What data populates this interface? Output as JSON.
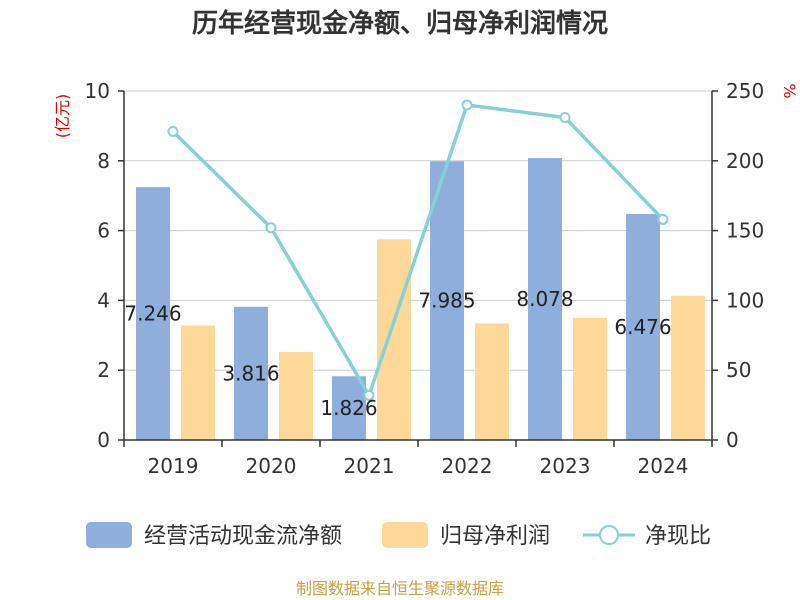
{
  "title": "历年经营现金净额、归母净利润情况",
  "source": "制图数据来自恒生聚源数据库",
  "colors": {
    "cash_flow": "#8eaedb",
    "net_profit": "#fed898",
    "ratio": "#86d1d6",
    "unit": "#e00000",
    "source": "#c8a040",
    "axis": "#333333",
    "grid": "#cccccc"
  },
  "chart_data": {
    "type": "bar",
    "title": "历年经营现金净额、归母净利润情况",
    "categories": [
      "2019",
      "2020",
      "2021",
      "2022",
      "2023",
      "2024"
    ],
    "y_left": {
      "unit": "(亿元)",
      "ylim": [
        0,
        10
      ],
      "ticks": [
        0,
        2,
        4,
        6,
        8,
        10
      ]
    },
    "y_right": {
      "unit": "%",
      "ylim": [
        0,
        250
      ],
      "ticks": [
        0,
        50,
        100,
        150,
        200,
        250
      ]
    },
    "grid": true,
    "legend_position": "bottom",
    "series": [
      {
        "name": "经营活动现金流净额",
        "type": "bar",
        "axis": "left",
        "values": [
          7.246,
          3.816,
          1.826,
          7.985,
          8.078,
          6.476
        ],
        "labels": [
          "7.246",
          "3.816",
          "1.826",
          "7.985",
          "8.078",
          "6.476"
        ]
      },
      {
        "name": "归母净利润",
        "type": "bar",
        "axis": "left",
        "values": [
          3.28,
          2.52,
          5.75,
          3.34,
          3.5,
          4.13
        ]
      },
      {
        "name": "净现比",
        "type": "line",
        "axis": "right",
        "values": [
          221,
          152,
          32,
          240,
          231,
          158
        ]
      }
    ]
  }
}
